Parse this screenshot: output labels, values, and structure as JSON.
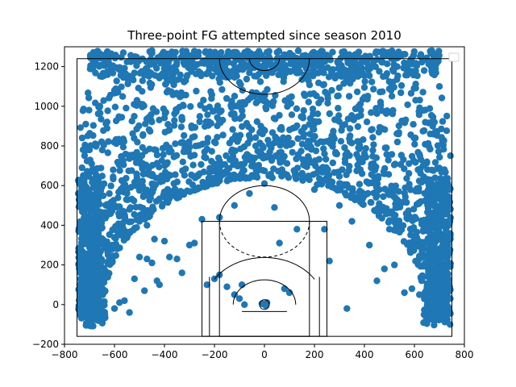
{
  "chart_data": {
    "type": "scatter",
    "title": "Three-point FG attempted since season 2010",
    "xlabel": "",
    "ylabel": "",
    "xlim": [
      -800,
      800
    ],
    "ylim": [
      -200,
      1300
    ],
    "xticks": [
      -800,
      -600,
      -400,
      -200,
      0,
      200,
      400,
      600,
      800
    ],
    "yticks": [
      -200,
      0,
      200,
      400,
      600,
      800,
      1000,
      1200
    ],
    "grid": false,
    "legend": "top-right (empty)",
    "marker_color": "#1f77b4",
    "description_of_distribution": "Dense band of three-point attempts forming the arc around the hoop, plus corner threes along x=±700 and deep attempts up to y≈1280; sparse points inside the arc",
    "arc_band": {
      "inner_radius": 640,
      "outer_radius": 1280,
      "center": [
        0,
        0
      ]
    },
    "sample_points": [
      [
        -730,
        690
      ],
      [
        -715,
        440
      ],
      [
        -700,
        780
      ],
      [
        -690,
        1250
      ],
      [
        -650,
        1150
      ],
      [
        -600,
        1080
      ],
      [
        -550,
        560
      ],
      [
        -500,
        420
      ],
      [
        -470,
        400
      ],
      [
        -440,
        330
      ],
      [
        -400,
        320
      ],
      [
        -380,
        240
      ],
      [
        -350,
        230
      ],
      [
        -330,
        160
      ],
      [
        -300,
        300
      ],
      [
        -280,
        310
      ],
      [
        -250,
        430
      ],
      [
        -230,
        100
      ],
      [
        -200,
        130
      ],
      [
        -180,
        150
      ],
      [
        -150,
        90
      ],
      [
        -120,
        50
      ],
      [
        -100,
        30
      ],
      [
        -80,
        0
      ],
      [
        -580,
        10
      ],
      [
        -560,
        20
      ],
      [
        -540,
        -40
      ],
      [
        -600,
        -20
      ],
      [
        -500,
        240
      ],
      [
        -470,
        230
      ],
      [
        -450,
        210
      ],
      [
        -430,
        120
      ],
      [
        -480,
        70
      ],
      [
        -520,
        130
      ],
      [
        -420,
        100
      ],
      [
        -180,
        440
      ],
      [
        -120,
        500
      ],
      [
        -60,
        560
      ],
      [
        0,
        610
      ],
      [
        40,
        490
      ],
      [
        60,
        310
      ],
      [
        80,
        80
      ],
      [
        100,
        60
      ],
      [
        130,
        380
      ],
      [
        200,
        580
      ],
      [
        240,
        380
      ],
      [
        260,
        220
      ],
      [
        300,
        500
      ],
      [
        330,
        -20
      ],
      [
        350,
        420
      ],
      [
        420,
        300
      ],
      [
        450,
        120
      ],
      [
        480,
        180
      ],
      [
        500,
        380
      ],
      [
        520,
        200
      ],
      [
        560,
        60
      ],
      [
        590,
        80
      ],
      [
        620,
        50
      ],
      [
        650,
        720
      ],
      [
        680,
        920
      ],
      [
        700,
        1100
      ],
      [
        720,
        300
      ],
      [
        740,
        330
      ],
      [
        -90,
        100
      ],
      [
        0,
        0
      ],
      [
        10,
        10
      ],
      [
        -10,
        5
      ],
      [
        5,
        -5
      ]
    ]
  }
}
